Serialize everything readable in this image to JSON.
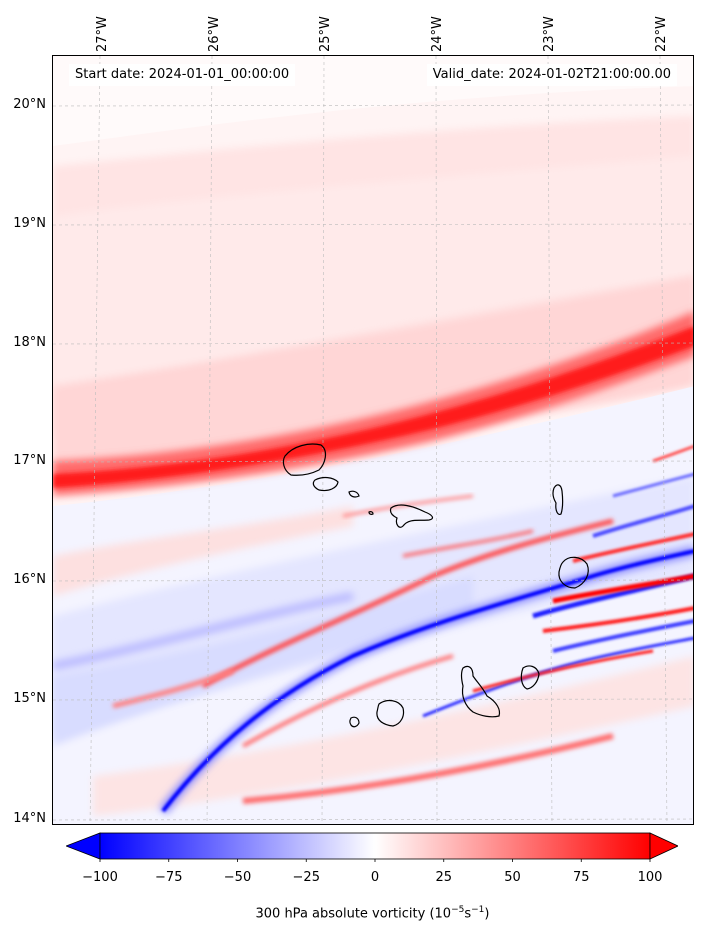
{
  "map": {
    "start_date": "Start date: 2024-01-01_00:00:00",
    "valid_date": "Valid_date: 2024-01-02T21:00:00.00",
    "lon_labels": [
      "27°W",
      "26°W",
      "25°W",
      "24°W",
      "23°W",
      "22°W"
    ],
    "lat_labels": [
      "20°N",
      "19°N",
      "18°N",
      "17°N",
      "16°N",
      "15°N",
      "14°N"
    ],
    "extent": {
      "lon_min": -27.4,
      "lon_max": -21.8,
      "lat_min": 13.95,
      "lat_max": 20.4
    }
  },
  "colorbar": {
    "ticks": [
      "−100",
      "−75",
      "−50",
      "−25",
      "0",
      "25",
      "50",
      "75",
      "100"
    ],
    "label_prefix": "300 hPa absolute vorticity (10",
    "label_exp1": "−5",
    "label_mid": "s",
    "label_exp2": "−1",
    "label_suffix": ")",
    "min_color": "#0000ff",
    "mid_color": "#ffffff",
    "max_color": "#ff0000"
  }
}
